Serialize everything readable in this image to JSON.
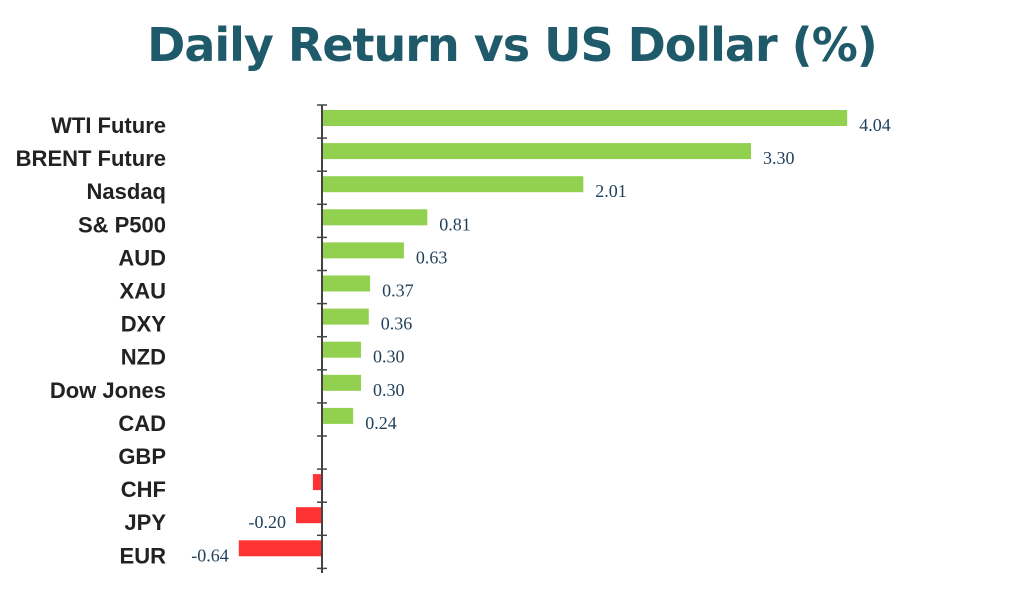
{
  "chart_data": {
    "type": "bar",
    "orientation": "horizontal",
    "title": "Daily Return vs US Dollar (%)",
    "categories": [
      "WTI Future",
      "BRENT Future",
      "Nasdaq",
      "S& P500",
      "AUD",
      "XAU",
      "DXY",
      "NZD",
      "Dow Jones",
      "CAD",
      "GBP",
      "CHF",
      "JPY",
      "EUR"
    ],
    "values": [
      4.04,
      3.3,
      2.01,
      0.81,
      0.63,
      0.37,
      0.36,
      0.3,
      0.3,
      0.24,
      0.0,
      -0.07,
      -0.2,
      -0.64
    ],
    "data_labels": [
      "4.04",
      "3.30",
      "2.01",
      "0.81",
      "0.63",
      "0.37",
      "0.36",
      "0.30",
      "0.30",
      "0.24",
      "",
      "",
      "-0.20",
      "-0.64"
    ],
    "xlabel": "",
    "ylabel": "",
    "xlim": [
      -0.8,
      4.2
    ],
    "grid": false,
    "legend": "none",
    "colors": {
      "positive": "#92d050",
      "negative": "#ff3333",
      "axis": "#444444",
      "title": "#1f5a6a"
    }
  }
}
